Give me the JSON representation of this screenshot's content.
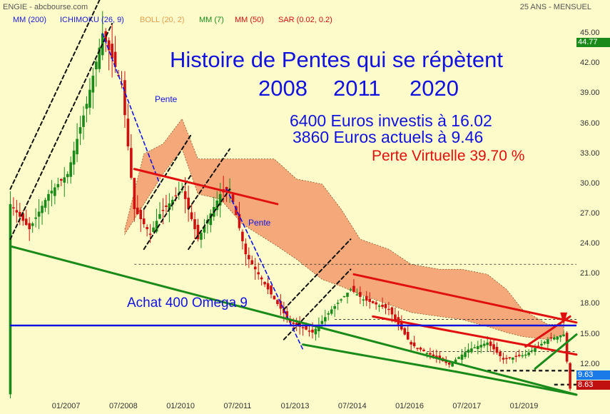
{
  "header": {
    "source": "ENGIE - abcbourse.com",
    "period": "25 ANS - MENSUEL"
  },
  "indicators": [
    {
      "label": "MM (200)",
      "color": "#1a1ad8"
    },
    {
      "label": "ICHIMOKU (26, 9)",
      "color": "#1a1ad8"
    },
    {
      "label": "BOLL (20, 2)",
      "color": "#e0a050"
    },
    {
      "label": "MM (7)",
      "color": "#1a8a1a"
    },
    {
      "label": "MM (50)",
      "color": "#d01010"
    },
    {
      "label": "SAR (0.02, 0.2)",
      "color": "#d01010"
    }
  ],
  "annotations": {
    "title_line1": "Histoire de Pentes qui se répètent",
    "title_line2_a": "2008",
    "title_line2_b": "2011",
    "title_line2_c": "2020",
    "invest_line1": "6400 Euros investis à 16.02",
    "invest_line2": "3860 Euros actuels à  9.46",
    "loss": "Perte Virtuelle 39.70 %",
    "buy": "Achat 400 Omega 9",
    "pente1": "Pente",
    "pente2": "Pente"
  },
  "price_tags": {
    "high": "44.77",
    "last": "9.63",
    "low": "8.63"
  },
  "colors": {
    "background": "#fdfbc9",
    "candle_up": "#1a8a1a",
    "candle_down": "#d01010",
    "cloud": "#f5a97a",
    "support": "#1a8a1a",
    "resistance": "#e01010",
    "buy_line": "#1212e0",
    "slope": "#1212e0"
  },
  "chart_data": {
    "type": "candlestick",
    "title": "Histoire de Pentes qui se répètent 2008 2011 2020",
    "x_ticks": [
      "01/2007",
      "07/2008",
      "01/2010",
      "07/2011",
      "01/2013",
      "07/2014",
      "01/2016",
      "07/2017",
      "01/2019"
    ],
    "y_ticks": [
      "12.00",
      "15.00",
      "18.00",
      "21.00",
      "24.00",
      "27.00",
      "30.00",
      "33.00",
      "36.00",
      "39.00",
      "42.00",
      "45.00"
    ],
    "ylim": [
      8.5,
      45.5
    ],
    "xlim": [
      "2005-06",
      "2020-05"
    ],
    "buy_level": 15.9,
    "last_price": 9.63,
    "low_tag": 8.63,
    "high_tag": 44.77,
    "price_path": [
      [
        "2005-07",
        28.0
      ],
      [
        "2006-01",
        25.5
      ],
      [
        "2006-07",
        29.0
      ],
      [
        "2007-01",
        31.0
      ],
      [
        "2007-07",
        38.0
      ],
      [
        "2007-12",
        45.0
      ],
      [
        "2008-06",
        40.0
      ],
      [
        "2008-10",
        27.5
      ],
      [
        "2009-03",
        25.0
      ],
      [
        "2009-06",
        27.0
      ],
      [
        "2010-01",
        29.5
      ],
      [
        "2010-06",
        24.5
      ],
      [
        "2011-01",
        29.0
      ],
      [
        "2011-04",
        29.5
      ],
      [
        "2011-09",
        23.0
      ],
      [
        "2012-06",
        18.5
      ],
      [
        "2012-11",
        16.2
      ],
      [
        "2013-06",
        15.2
      ],
      [
        "2013-12",
        17.5
      ],
      [
        "2014-06",
        19.5
      ],
      [
        "2014-10",
        18.5
      ],
      [
        "2015-06",
        17.5
      ],
      [
        "2016-01",
        14.0
      ],
      [
        "2016-07",
        13.0
      ],
      [
        "2017-01",
        12.0
      ],
      [
        "2017-07",
        13.5
      ],
      [
        "2018-01",
        14.2
      ],
      [
        "2018-06",
        12.5
      ],
      [
        "2019-01",
        13.0
      ],
      [
        "2019-08",
        14.5
      ],
      [
        "2020-01",
        15.0
      ],
      [
        "2020-03",
        9.6
      ]
    ],
    "cloud_top": [
      [
        "2008-07",
        25.5
      ],
      [
        "2009-01",
        33.0
      ],
      [
        "2009-07",
        34.0
      ],
      [
        "2010-01",
        36.5
      ],
      [
        "2010-06",
        32.5
      ],
      [
        "2011-01",
        32.5
      ],
      [
        "2011-08",
        32.5
      ],
      [
        "2012-06",
        32.5
      ],
      [
        "2013-01",
        30.5
      ],
      [
        "2013-09",
        30.0
      ],
      [
        "2014-03",
        27.5
      ],
      [
        "2014-09",
        24.5
      ],
      [
        "2015-06",
        23.5
      ],
      [
        "2016-01",
        22.0
      ],
      [
        "2016-10",
        21.5
      ],
      [
        "2017-05",
        21.5
      ],
      [
        "2018-01",
        21.0
      ],
      [
        "2018-07",
        19.5
      ],
      [
        "2018-12",
        17.5
      ],
      [
        "2019-08",
        16.0
      ],
      [
        "2020-01",
        16.0
      ]
    ],
    "cloud_bottom": [
      [
        "2008-07",
        25.0
      ],
      [
        "2009-01",
        28.0
      ],
      [
        "2009-07",
        31.0
      ],
      [
        "2010-01",
        33.5
      ],
      [
        "2010-06",
        29.0
      ],
      [
        "2011-01",
        28.5
      ],
      [
        "2011-08",
        26.0
      ],
      [
        "2012-06",
        24.0
      ],
      [
        "2013-01",
        22.5
      ],
      [
        "2013-09",
        20.5
      ],
      [
        "2014-03",
        19.8
      ],
      [
        "2014-09",
        19.0
      ],
      [
        "2015-06",
        18.0
      ],
      [
        "2016-01",
        17.2
      ],
      [
        "2016-10",
        16.8
      ],
      [
        "2017-05",
        16.5
      ],
      [
        "2018-01",
        15.8
      ],
      [
        "2018-07",
        15.2
      ],
      [
        "2018-12",
        14.8
      ],
      [
        "2019-08",
        14.5
      ],
      [
        "2020-01",
        15.0
      ]
    ],
    "trend_lines": [
      {
        "kind": "support",
        "from": [
          "2005-07",
          23.8
        ],
        "to": [
          "2020-05",
          9.0
        ]
      },
      {
        "kind": "support",
        "from": [
          "2013-03",
          14.0
        ],
        "to": [
          "2017-03",
          11.3
        ]
      },
      {
        "kind": "support",
        "from": [
          "2017-03",
          11.3
        ],
        "to": [
          "2020-05",
          9.0
        ]
      },
      {
        "kind": "resistance",
        "from": [
          "2008-10",
          31.5
        ],
        "to": [
          "2012-07",
          28.0
        ]
      },
      {
        "kind": "resistance",
        "from": [
          "2014-07",
          21.0
        ],
        "to": [
          "2020-05",
          16.2
        ]
      },
      {
        "kind": "resistance",
        "from": [
          "2015-01",
          16.8
        ],
        "to": [
          "2020-05",
          13.0
        ]
      },
      {
        "kind": "resistance_short",
        "from": [
          "2019-01",
          13.8
        ],
        "to": [
          "2020-03",
          16.8
        ]
      },
      {
        "kind": "support_short",
        "from": [
          "2019-04",
          11.6
        ],
        "to": [
          "2020-05",
          15.0
        ]
      }
    ],
    "channels": [
      {
        "from": [
          "2005-07",
          24.5
        ],
        "to": [
          "2008-03",
          46.0
        ],
        "offset": 5.0
      },
      {
        "from": [
          "2009-01",
          23.5
        ],
        "to": [
          "2010-04",
          31.0
        ],
        "offset": 4.0
      },
      {
        "from": [
          "2010-03",
          23.5
        ],
        "to": [
          "2011-04",
          29.5
        ],
        "offset": 4.0
      },
      {
        "from": [
          "2012-09",
          14.5
        ],
        "to": [
          "2014-06",
          21.5
        ],
        "offset": 3.0
      }
    ],
    "slopes": [
      {
        "label": "Pente",
        "from": [
          "2007-12",
          45.0
        ],
        "to": [
          "2009-06",
          30.0
        ]
      },
      {
        "label": "Pente",
        "from": [
          "2011-03",
          29.5
        ],
        "to": [
          "2013-03",
          13.5
        ]
      }
    ],
    "dashed_levels": [
      {
        "y": 22.0,
        "from": "2008-10",
        "to": "2020-05",
        "style": "thin"
      },
      {
        "y": 16.5,
        "from": "2014-01",
        "to": "2020-05",
        "style": "thin"
      },
      {
        "y": 13.3,
        "from": "2016-06",
        "to": "2020-05",
        "style": "thin"
      },
      {
        "y": 11.4,
        "from": "2018-01",
        "to": "2020-05",
        "style": "thick"
      },
      {
        "y": 10.0,
        "from": "2019-10",
        "to": "2020-05",
        "style": "thick"
      }
    ]
  }
}
